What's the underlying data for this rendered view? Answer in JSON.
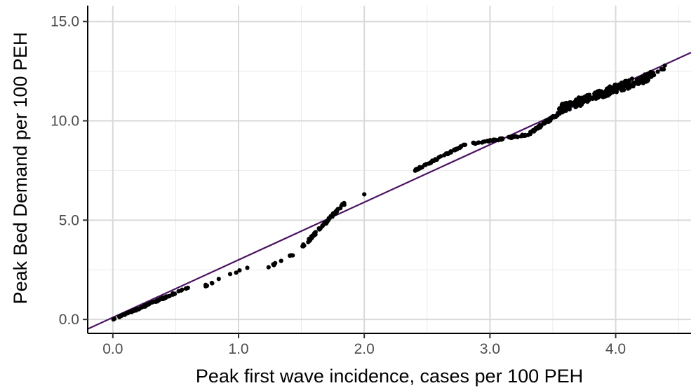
{
  "chart_data": {
    "type": "scatter",
    "title": "",
    "xlabel": "Peak first wave incidence, cases per 100 PEH",
    "ylabel": "Peak Bed Demand per 100 PEH",
    "xlim": [
      -0.2,
      4.6
    ],
    "ylim": [
      -0.7,
      15.8
    ],
    "x_ticks": [
      0.0,
      1.0,
      2.0,
      3.0,
      4.0
    ],
    "x_tick_labels": [
      "0.0",
      "1.0",
      "2.0",
      "3.0",
      "4.0"
    ],
    "y_ticks": [
      0.0,
      5.0,
      10.0,
      15.0
    ],
    "y_tick_labels": [
      "0.0",
      "5.0",
      "10.0",
      "15.0"
    ],
    "grid": true,
    "legend": "none",
    "point_color": "#000000",
    "fit_line": {
      "color": "#4b1361",
      "intercept": 0.1,
      "slope": 2.9
    },
    "clusters": [
      {
        "x_range": [
          0.0,
          0.6
        ],
        "y_start": 0.0,
        "y_end": 1.6,
        "count": 80,
        "jitter": 0.08
      },
      {
        "x_range": [
          0.7,
          1.1
        ],
        "y_start": 1.6,
        "y_end": 2.7,
        "count": 10,
        "jitter": 0.1
      },
      {
        "x_range": [
          1.2,
          1.5
        ],
        "y_start": 2.5,
        "y_end": 3.5,
        "count": 10,
        "jitter": 0.1
      },
      {
        "x_range": [
          1.5,
          1.85
        ],
        "y_start": 3.6,
        "y_end": 5.9,
        "count": 55,
        "jitter": 0.15
      },
      {
        "x_range": [
          2.4,
          2.8
        ],
        "y_start": 7.5,
        "y_end": 8.8,
        "count": 50,
        "jitter": 0.08
      },
      {
        "x_range": [
          2.8,
          3.3
        ],
        "y_start": 8.8,
        "y_end": 9.3,
        "count": 45,
        "jitter": 0.08
      },
      {
        "x_range": [
          3.3,
          3.6
        ],
        "y_start": 9.3,
        "y_end": 10.6,
        "count": 50,
        "jitter": 0.15
      },
      {
        "x_range": [
          3.55,
          4.3
        ],
        "y_start": 10.6,
        "y_end": 12.3,
        "count": 230,
        "jitter": 0.45
      },
      {
        "x_range": [
          4.1,
          4.4
        ],
        "y_start": 11.8,
        "y_end": 12.7,
        "count": 15,
        "jitter": 0.25
      }
    ],
    "points": [
      {
        "x": 2.0,
        "y": 6.3
      }
    ]
  }
}
